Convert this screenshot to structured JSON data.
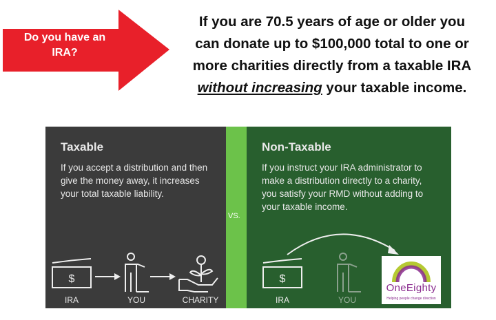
{
  "callout": {
    "label": "Do you have an IRA?",
    "color": "#e8202a"
  },
  "headline": {
    "line1": "If you are 70.5 years of age or older you",
    "line2": "can donate up to $100,000 total to one or",
    "line3": "more charities directly from a taxable IRA",
    "emphasis": "without increasing",
    "line4_rest": " your taxable income."
  },
  "taxable": {
    "title": "Taxable",
    "text": "If you accept a distribution and then give the money away, it increases your total taxable liability.",
    "labels": [
      "IRA",
      "YOU",
      "CHARITY"
    ],
    "color": "#3b3b3b"
  },
  "vs": {
    "label": "VS.",
    "color": "#6cc24a"
  },
  "non_taxable": {
    "title": "Non-Taxable",
    "text": "If you instruct your IRA administrator to make a distribution directly to a charity, you satisfy your RMD without adding to your taxable income.",
    "labels": [
      "IRA",
      "YOU"
    ],
    "color": "#285f2e"
  },
  "logo": {
    "name": "OneEighty",
    "tagline": "Helping people change direction"
  }
}
